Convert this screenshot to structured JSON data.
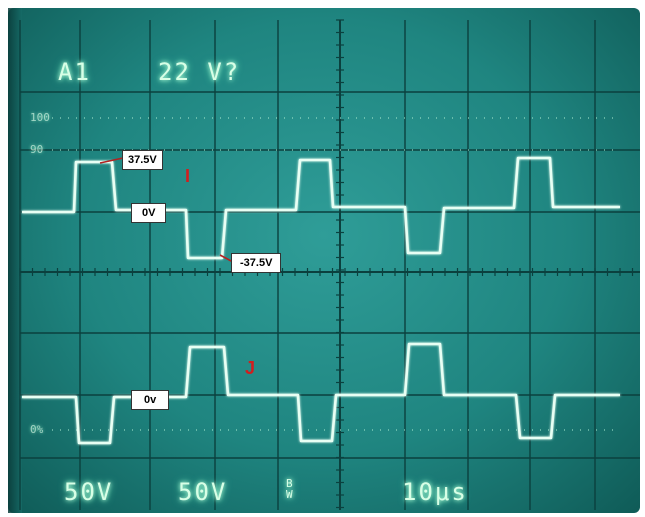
{
  "header": {
    "channel": "A1",
    "reading": "22 V?"
  },
  "scale_marks": {
    "top": "100",
    "upper": "90",
    "lower": "0%"
  },
  "callouts": {
    "pos_level": "37.5V",
    "zero_level": "0V",
    "neg_level": "-37.5V",
    "zero_level_j": "0v"
  },
  "signals": {
    "i_label": "I",
    "j_label": "J"
  },
  "footer": {
    "ch1_scale": "50V",
    "ch2_scale": "50V",
    "coupling": "B\nW",
    "timebase": "10μs"
  },
  "colors": {
    "screen": "#1f8580",
    "trace": "#e8fff4",
    "graticule": "#0a3d3b",
    "label_red": "#d21e1e"
  }
}
